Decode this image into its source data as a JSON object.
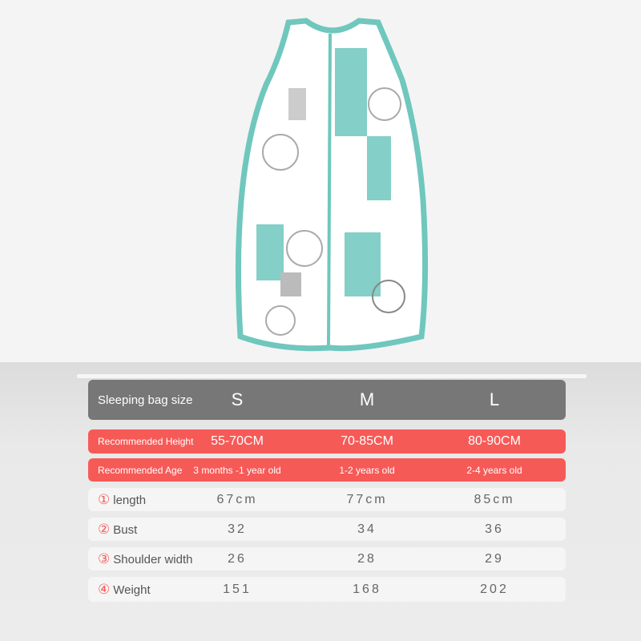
{
  "product": {
    "colors": {
      "teal": "#6fc7bd",
      "white": "#ffffff",
      "gray": "#b5b5b5"
    }
  },
  "table": {
    "header": {
      "label": "Sleeping bag size",
      "sizes": [
        "S",
        "M",
        "L"
      ]
    },
    "rows": [
      {
        "label": "Recommended Height",
        "values": [
          "55-70CM",
          "70-85CM",
          "80-90CM"
        ]
      },
      {
        "label": "Recommended Age",
        "values": [
          "3 months -1 year old",
          "1-2 years old",
          "2-4 years old"
        ]
      },
      {
        "num": "①",
        "label": "length",
        "values": [
          "67cm",
          "77cm",
          "85cm"
        ]
      },
      {
        "num": "②",
        "label": "Bust",
        "values": [
          "32",
          "34",
          "36"
        ]
      },
      {
        "num": "③",
        "label": "Shoulder width",
        "values": [
          "26",
          "28",
          "29"
        ]
      },
      {
        "num": "④",
        "label": "Weight",
        "values": [
          "151",
          "168",
          "202"
        ]
      }
    ],
    "colors": {
      "header": "#777777",
      "accent": "#f65a57",
      "light": "#f5f5f5"
    }
  }
}
